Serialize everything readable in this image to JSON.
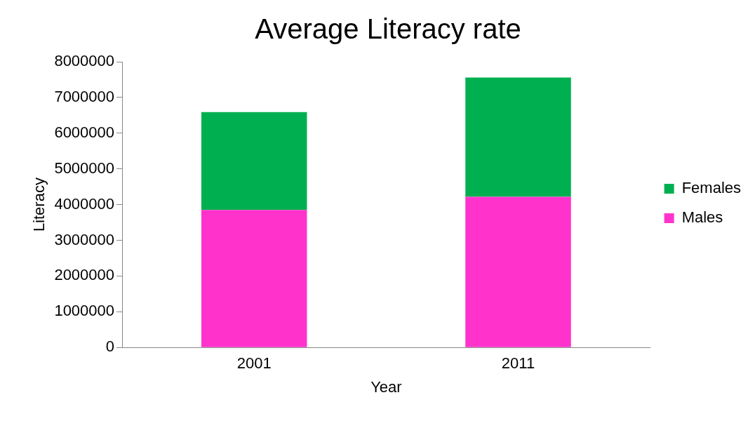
{
  "chart_data": {
    "type": "bar",
    "title": "Average Literacy rate",
    "xlabel": "Year",
    "ylabel": "Literacy",
    "categories": [
      "2001",
      "2011"
    ],
    "stacked": true,
    "series": [
      {
        "name": "Males",
        "color": "#ff33cc",
        "values": [
          3850000,
          4220000
        ]
      },
      {
        "name": "Females",
        "color": "#00b050",
        "values": [
          2740000,
          3340000
        ]
      }
    ],
    "ylim": [
      0,
      8000000
    ],
    "yticks": [
      0,
      1000000,
      2000000,
      3000000,
      4000000,
      5000000,
      6000000,
      7000000,
      8000000
    ],
    "grid": false,
    "legend": "right"
  }
}
